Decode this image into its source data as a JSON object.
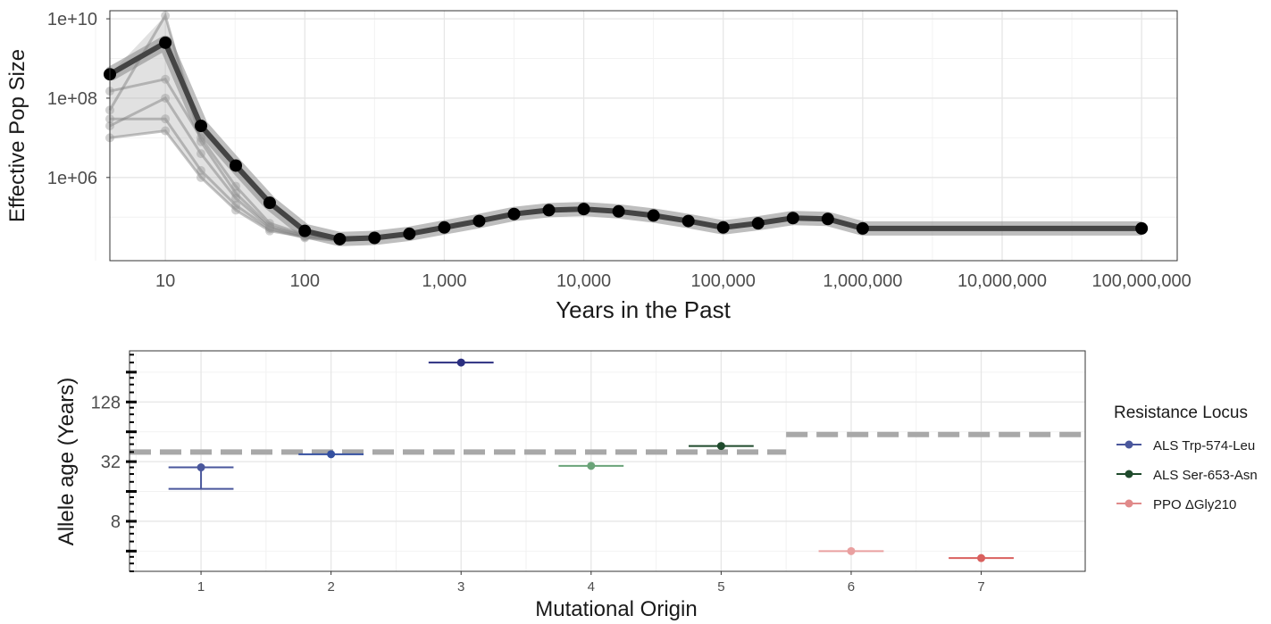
{
  "chart_data": [
    {
      "type": "line",
      "xlabel": "Years in the Past",
      "ylabel": "Effective Pop Size",
      "x_scale": "log10",
      "y_scale": "log10",
      "xlim": [
        4,
        180000000
      ],
      "ylim": [
        8000,
        16000000000
      ],
      "x_ticks": [
        10,
        100,
        1000,
        10000,
        100000,
        1000000,
        10000000,
        100000000
      ],
      "x_tick_labels": [
        "10",
        "100",
        "1,000",
        "10,000",
        "100,000",
        "1,000,000",
        "10,000,000",
        "100,000,000"
      ],
      "y_ticks": [
        1000000,
        100000000,
        10000000000
      ],
      "y_tick_labels": [
        "1e+06",
        "1e+08",
        "1e+10"
      ],
      "grid": true,
      "series": [
        {
          "x": [
            4,
            10,
            18,
            32,
            56,
            100,
            178,
            316,
            562,
            1000,
            1778,
            3162,
            5623,
            10000,
            17783,
            31623,
            56234,
            100000,
            177828,
            316228,
            562341,
            1000000,
            100000000
          ],
          "y": [
            400000000,
            2500000000,
            20000000,
            2000000,
            230000,
            45000,
            28000,
            30000,
            38000,
            55000,
            80000,
            120000,
            150000,
            160000,
            140000,
            110000,
            80000,
            55000,
            70000,
            95000,
            90000,
            52000,
            52000
          ]
        }
      ],
      "replicates": [
        {
          "x": [
            4,
            10,
            18,
            32,
            56,
            100,
            178,
            316,
            562,
            1000
          ],
          "y": [
            30000000,
            30000000,
            1500000,
            200000,
            50000,
            30000,
            26000,
            29000,
            37000,
            54000
          ]
        },
        {
          "x": [
            4,
            10,
            18,
            32,
            56,
            100,
            178,
            316,
            562,
            1000
          ],
          "y": [
            20000000,
            100000000,
            4000000,
            300000,
            55000,
            33000,
            27000,
            30000,
            38000,
            55000
          ]
        },
        {
          "x": [
            4,
            10,
            18,
            32,
            56,
            100,
            178,
            316,
            562,
            1000
          ],
          "y": [
            50000000,
            12000000000,
            8000000,
            400000,
            60000,
            34000,
            28000,
            31000,
            38000,
            55000
          ]
        },
        {
          "x": [
            4,
            10,
            18,
            32,
            56,
            100,
            178,
            316,
            562,
            1000
          ],
          "y": [
            10000000,
            15000000,
            1000000,
            150000,
            45000,
            32000,
            25000,
            29000,
            36000,
            53000
          ]
        },
        {
          "x": [
            4,
            10,
            18,
            32,
            56,
            100,
            178,
            316,
            562,
            1000
          ],
          "y": [
            150000000,
            300000000,
            10000000,
            600000,
            70000,
            36000,
            27000,
            30000,
            39000,
            56000
          ]
        }
      ]
    },
    {
      "type": "scatter",
      "xlabel": "Mutational Origin",
      "ylabel": "Allele age (Years)",
      "y_scale": "log2",
      "ylim": [
        2.5,
        420
      ],
      "xlim": [
        0.45,
        7.8
      ],
      "categories": [
        "1",
        "2",
        "3",
        "4",
        "5",
        "6",
        "7"
      ],
      "y_tick_labels": [
        "8",
        "32",
        "128"
      ],
      "y_ticks": [
        8,
        32,
        128
      ],
      "grid": true,
      "legend": {
        "title": "Resistance Locus",
        "position": "right",
        "entries": [
          {
            "label": "ALS Trp-574-Leu",
            "color": "#4a579c"
          },
          {
            "label": "ALS Ser-653-Asn",
            "color": "#1f4a2c"
          },
          {
            "label": "PPO ΔGly210",
            "color": "#e08a8a"
          }
        ]
      },
      "points": [
        {
          "x": 1,
          "y": 28,
          "low": 17,
          "high": 28,
          "locus": "ALS Trp-574-Leu",
          "color": "#4a579c"
        },
        {
          "x": 2,
          "y": 38,
          "low": 38,
          "high": 38,
          "locus": "ALS Trp-574-Leu",
          "color": "#3450a0"
        },
        {
          "x": 3,
          "y": 320,
          "low": 320,
          "high": 320,
          "locus": "ALS Trp-574-Leu",
          "color": "#2b2f80"
        },
        {
          "x": 4,
          "y": 29,
          "low": 29,
          "high": 29,
          "locus": "ALS Ser-653-Asn",
          "color": "#6aa378"
        },
        {
          "x": 5,
          "y": 46,
          "low": 46,
          "high": 46,
          "locus": "ALS Ser-653-Asn",
          "color": "#1f4a2c"
        },
        {
          "x": 6,
          "y": 4,
          "low": 4,
          "high": 4,
          "locus": "PPO ΔGly210",
          "color": "#e9a0a0"
        },
        {
          "x": 7,
          "y": 3.4,
          "low": 3.4,
          "high": 3.4,
          "locus": "PPO ΔGly210",
          "color": "#d9605e"
        }
      ],
      "reference_lines": [
        {
          "x_from": 0.45,
          "x_to": 5.5,
          "y": 40
        },
        {
          "x_from": 5.5,
          "x_to": 7.8,
          "y": 60
        }
      ]
    }
  ]
}
